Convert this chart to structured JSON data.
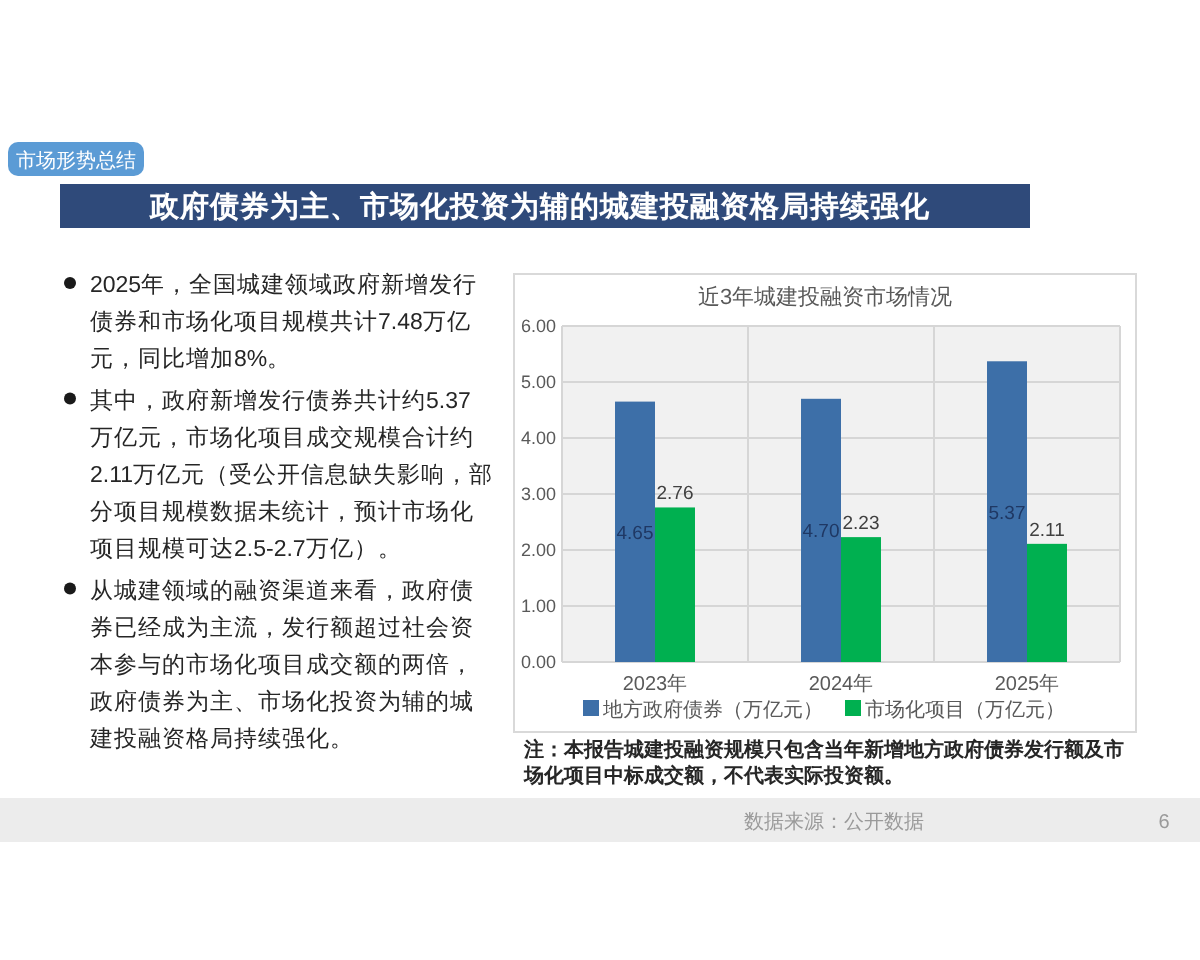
{
  "chart_data": {
    "type": "bar",
    "title": "近3年城建投融资市场情况",
    "categories": [
      "2023年",
      "2024年",
      "2025年"
    ],
    "series": [
      {
        "name": "地方政府债券（万亿元）",
        "color": "#3d6fa8",
        "values": [
          4.65,
          4.7,
          5.37
        ],
        "value_labels": [
          "4.65",
          "4.70",
          "5.37"
        ]
      },
      {
        "name": "市场化项目（万亿元）",
        "color": "#00b050",
        "values": [
          2.76,
          2.23,
          2.11
        ],
        "value_labels": [
          "2.76",
          "2.23",
          "2.11"
        ]
      }
    ],
    "ylim": [
      0,
      6
    ],
    "yticks": [
      {
        "value": 0,
        "label": "0.00"
      },
      {
        "value": 1,
        "label": "1.00"
      },
      {
        "value": 2,
        "label": "2.00"
      },
      {
        "value": 3,
        "label": "3.00"
      },
      {
        "value": 4,
        "label": "4.00"
      },
      {
        "value": 5,
        "label": "5.00"
      },
      {
        "value": 6,
        "label": "6.00"
      }
    ],
    "grid": true,
    "legend": "bottom",
    "annotations": [
      "市场形势总结",
      "政府债券为主、市场化投资为辅的城建投融资格局持续强化",
      "2025年，全国城建领域政府新增发行债券和市场化项目规模共计7.48万亿元，同比增加8%。",
      "其中，政府新增发行债券共计约5.37万亿元，市场化项目成交规模合计约2.11万亿元（受公开信息缺失影响，部分项目规模数据未统计，预计市场化项目规模可达2.5-2.7万亿）。",
      "从城建领域的融资渠道来看，政府债券已经成为主流，发行额超过社会资本参与的市场化项目成交额的两倍，政府债券为主、市场化投资为辅的城建投融资格局持续强化。",
      "注：本报告城建投融资规模只包含当年新增地方政府债券发行额及市场化项目中标成交额，不代表实际投资额。",
      "数据来源：公开数据",
      "6"
    ]
  }
}
